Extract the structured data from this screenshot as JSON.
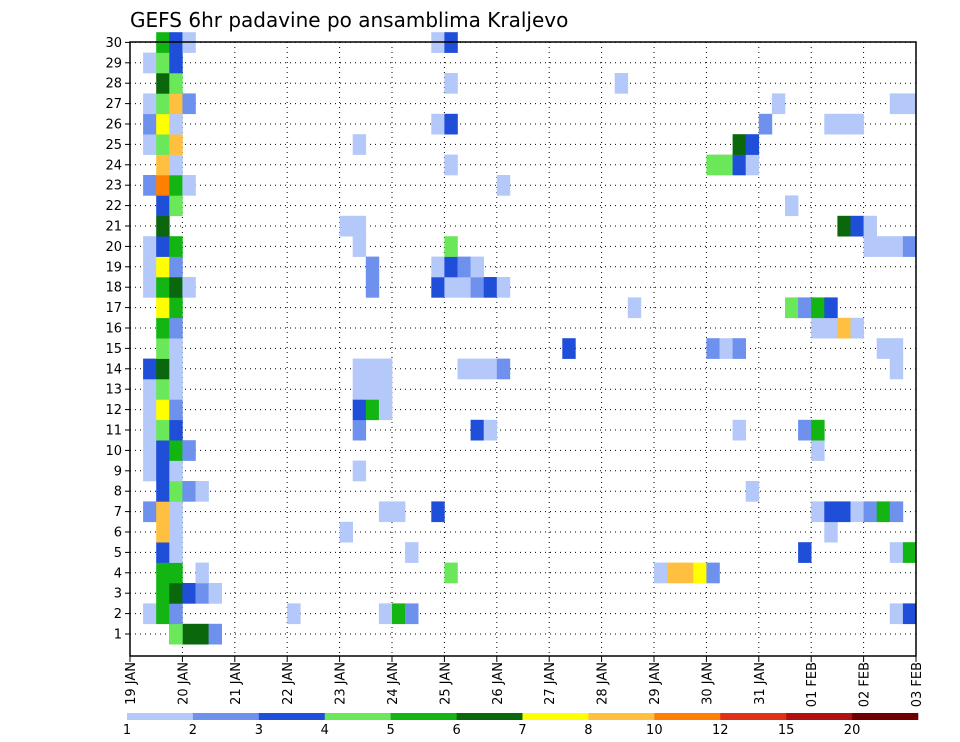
{
  "chart_data": {
    "type": "heatmap",
    "title": "GEFS 6hr padavine po ansamblima Kraljevo",
    "xlabel": "",
    "ylabel": "",
    "grid": true,
    "x_tick_labels": [
      "19 JAN",
      "20 JAN",
      "21 JAN",
      "22 JAN",
      "23 JAN",
      "24 JAN",
      "25 JAN",
      "26 JAN",
      "27 JAN",
      "28 JAN",
      "29 JAN",
      "30 JAN",
      "31 JAN",
      "01 FEB",
      "02 FEB",
      "03 FEB"
    ],
    "x_time_steps": 60,
    "x_steps_per_day": 4,
    "y_members": [
      1,
      2,
      3,
      4,
      5,
      6,
      7,
      8,
      9,
      10,
      11,
      12,
      13,
      14,
      15,
      16,
      17,
      18,
      19,
      20,
      21,
      22,
      23,
      24,
      25,
      26,
      27,
      28,
      29,
      30
    ],
    "colorbar": {
      "labels": [
        "1",
        "2",
        "3",
        "4",
        "5",
        "6",
        "7",
        "8",
        "10",
        "12",
        "15",
        "20"
      ],
      "colors": [
        "#b4c8fa",
        "#6e91ee",
        "#1f4ed8",
        "#6ae85a",
        "#12b512",
        "#0b670b",
        "#ffff00",
        "#ffc040",
        "#ff8000",
        "#e03018",
        "#b01010",
        "#700000"
      ]
    },
    "cells": [
      [
        1,
        4,
        6
      ],
      [
        1,
        5,
        6
      ],
      [
        1,
        6,
        6
      ],
      [
        1,
        7,
        2
      ],
      [
        1,
        4,
        4
      ],
      [
        2,
        2,
        1
      ],
      [
        2,
        3,
        5
      ],
      [
        2,
        4,
        2
      ],
      [
        2,
        13,
        1
      ],
      [
        2,
        20,
        1
      ],
      [
        2,
        21,
        5
      ],
      [
        2,
        22,
        2
      ],
      [
        2,
        59,
        1
      ],
      [
        2,
        60,
        3
      ],
      [
        3,
        3,
        5
      ],
      [
        3,
        4,
        6
      ],
      [
        3,
        5,
        3
      ],
      [
        3,
        6,
        2
      ],
      [
        3,
        7,
        1
      ],
      [
        4,
        3,
        5
      ],
      [
        4,
        4,
        5
      ],
      [
        4,
        6,
        1
      ],
      [
        4,
        25,
        4
      ],
      [
        4,
        41,
        1
      ],
      [
        4,
        42,
        8
      ],
      [
        4,
        43,
        8
      ],
      [
        4,
        44,
        7
      ],
      [
        4,
        45,
        2
      ],
      [
        5,
        3,
        3
      ],
      [
        5,
        4,
        1
      ],
      [
        5,
        22,
        1
      ],
      [
        5,
        52,
        3
      ],
      [
        5,
        59,
        1
      ],
      [
        5,
        60,
        5
      ],
      [
        6,
        3,
        8
      ],
      [
        6,
        4,
        1
      ],
      [
        6,
        17,
        1
      ],
      [
        6,
        54,
        1
      ],
      [
        7,
        2,
        2
      ],
      [
        7,
        3,
        8
      ],
      [
        7,
        4,
        1
      ],
      [
        7,
        20,
        1
      ],
      [
        7,
        21,
        1
      ],
      [
        7,
        24,
        3
      ],
      [
        7,
        53,
        1
      ],
      [
        7,
        54,
        3
      ],
      [
        7,
        55,
        3
      ],
      [
        7,
        56,
        1
      ],
      [
        7,
        57,
        2
      ],
      [
        7,
        58,
        5
      ],
      [
        7,
        59,
        2
      ],
      [
        8,
        3,
        3
      ],
      [
        8,
        4,
        4
      ],
      [
        8,
        5,
        2
      ],
      [
        8,
        6,
        1
      ],
      [
        8,
        48,
        1
      ],
      [
        9,
        2,
        1
      ],
      [
        9,
        3,
        3
      ],
      [
        9,
        4,
        1
      ],
      [
        9,
        18,
        1
      ],
      [
        10,
        2,
        1
      ],
      [
        10,
        3,
        3
      ],
      [
        10,
        4,
        5
      ],
      [
        10,
        5,
        2
      ],
      [
        10,
        53,
        1
      ],
      [
        11,
        2,
        1
      ],
      [
        11,
        3,
        4
      ],
      [
        11,
        4,
        3
      ],
      [
        11,
        18,
        2
      ],
      [
        11,
        27,
        3
      ],
      [
        11,
        28,
        1
      ],
      [
        11,
        47,
        1
      ],
      [
        11,
        52,
        2
      ],
      [
        11,
        53,
        5
      ],
      [
        12,
        2,
        1
      ],
      [
        12,
        3,
        7
      ],
      [
        12,
        4,
        2
      ],
      [
        12,
        18,
        3
      ],
      [
        12,
        19,
        5
      ],
      [
        12,
        20,
        1
      ],
      [
        13,
        2,
        1
      ],
      [
        13,
        3,
        4
      ],
      [
        13,
        4,
        1
      ],
      [
        13,
        18,
        1
      ],
      [
        13,
        19,
        1
      ],
      [
        13,
        20,
        1
      ],
      [
        14,
        2,
        3
      ],
      [
        14,
        3,
        6
      ],
      [
        14,
        4,
        1
      ],
      [
        14,
        18,
        1
      ],
      [
        14,
        19,
        1
      ],
      [
        14,
        20,
        1
      ],
      [
        14,
        26,
        1
      ],
      [
        14,
        27,
        1
      ],
      [
        14,
        28,
        1
      ],
      [
        14,
        29,
        2
      ],
      [
        14,
        59,
        1
      ],
      [
        15,
        3,
        4
      ],
      [
        15,
        4,
        1
      ],
      [
        15,
        34,
        3
      ],
      [
        15,
        45,
        2
      ],
      [
        15,
        46,
        1
      ],
      [
        15,
        47,
        2
      ],
      [
        15,
        58,
        1
      ],
      [
        15,
        59,
        1
      ],
      [
        16,
        3,
        5
      ],
      [
        16,
        4,
        2
      ],
      [
        16,
        53,
        1
      ],
      [
        16,
        54,
        1
      ],
      [
        16,
        55,
        8
      ],
      [
        16,
        56,
        1
      ],
      [
        17,
        3,
        7
      ],
      [
        17,
        4,
        5
      ],
      [
        17,
        39,
        1
      ],
      [
        17,
        51,
        4
      ],
      [
        17,
        52,
        2
      ],
      [
        17,
        53,
        5
      ],
      [
        17,
        54,
        3
      ],
      [
        18,
        2,
        1
      ],
      [
        18,
        3,
        5
      ],
      [
        18,
        4,
        6
      ],
      [
        18,
        5,
        1
      ],
      [
        18,
        19,
        2
      ],
      [
        18,
        24,
        3
      ],
      [
        18,
        25,
        1
      ],
      [
        18,
        26,
        1
      ],
      [
        18,
        27,
        2
      ],
      [
        18,
        28,
        3
      ],
      [
        18,
        29,
        1
      ],
      [
        19,
        2,
        1
      ],
      [
        19,
        3,
        7
      ],
      [
        19,
        4,
        2
      ],
      [
        19,
        19,
        2
      ],
      [
        19,
        24,
        1
      ],
      [
        19,
        25,
        3
      ],
      [
        19,
        26,
        2
      ],
      [
        19,
        27,
        1
      ],
      [
        20,
        2,
        1
      ],
      [
        20,
        3,
        3
      ],
      [
        20,
        4,
        5
      ],
      [
        20,
        18,
        1
      ],
      [
        20,
        25,
        4
      ],
      [
        20,
        57,
        1
      ],
      [
        20,
        58,
        1
      ],
      [
        20,
        59,
        1
      ],
      [
        20,
        60,
        2
      ],
      [
        21,
        3,
        6
      ],
      [
        21,
        17,
        1
      ],
      [
        21,
        18,
        1
      ],
      [
        21,
        55,
        6
      ],
      [
        21,
        56,
        3
      ],
      [
        21,
        57,
        1
      ],
      [
        22,
        3,
        3
      ],
      [
        22,
        4,
        4
      ],
      [
        22,
        51,
        1
      ],
      [
        23,
        2,
        2
      ],
      [
        23,
        3,
        9
      ],
      [
        23,
        4,
        5
      ],
      [
        23,
        5,
        1
      ],
      [
        23,
        29,
        1
      ],
      [
        24,
        3,
        8
      ],
      [
        24,
        4,
        1
      ],
      [
        24,
        25,
        1
      ],
      [
        24,
        45,
        4
      ],
      [
        24,
        46,
        4
      ],
      [
        24,
        47,
        3
      ],
      [
        24,
        48,
        1
      ],
      [
        25,
        2,
        1
      ],
      [
        25,
        3,
        4
      ],
      [
        25,
        4,
        8
      ],
      [
        25,
        18,
        1
      ],
      [
        25,
        47,
        6
      ],
      [
        25,
        48,
        3
      ],
      [
        26,
        2,
        2
      ],
      [
        26,
        3,
        7
      ],
      [
        26,
        4,
        1
      ],
      [
        26,
        24,
        1
      ],
      [
        26,
        25,
        3
      ],
      [
        26,
        49,
        2
      ],
      [
        26,
        54,
        1
      ],
      [
        26,
        55,
        1
      ],
      [
        26,
        56,
        1
      ],
      [
        27,
        2,
        1
      ],
      [
        27,
        3,
        4
      ],
      [
        27,
        4,
        8
      ],
      [
        27,
        5,
        2
      ],
      [
        27,
        50,
        1
      ],
      [
        27,
        59,
        1
      ],
      [
        27,
        60,
        1
      ],
      [
        28,
        3,
        6
      ],
      [
        28,
        4,
        4
      ],
      [
        28,
        25,
        1
      ],
      [
        28,
        38,
        1
      ],
      [
        29,
        2,
        1
      ],
      [
        29,
        3,
        4
      ],
      [
        29,
        4,
        3
      ],
      [
        30,
        3,
        5
      ],
      [
        30,
        4,
        3
      ],
      [
        30,
        5,
        1
      ],
      [
        30,
        24,
        1
      ],
      [
        30,
        25,
        3
      ]
    ]
  }
}
